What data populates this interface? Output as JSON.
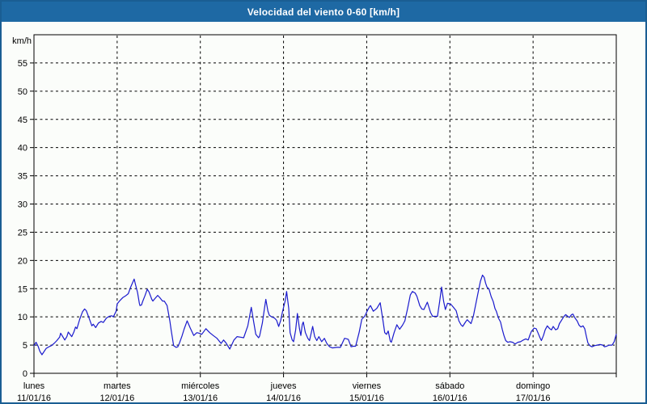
{
  "window": {
    "title": "Velocidad del viento 0-60 [km/h]"
  },
  "colors": {
    "frame_border": "#1A5E93",
    "titlebar_bg": "#1E69A4",
    "title_text": "#FFFFFF",
    "background": "#FBFDFA",
    "plot_border": "#000000",
    "grid": "#000000",
    "tick_text": "#000000",
    "line": "#1A1ACD"
  },
  "chart_data": {
    "type": "line",
    "title": "Velocidad del viento 0-60 [km/h]",
    "ylabel": "km/h",
    "xlabel": "",
    "ylim": [
      0,
      60
    ],
    "yticks": [
      0,
      5,
      10,
      15,
      20,
      25,
      30,
      35,
      40,
      45,
      50,
      55
    ],
    "y_unit_label": "km/h",
    "xlim_hours": [
      0,
      168
    ],
    "grid": true,
    "legend_position": "none",
    "x_categories": [
      {
        "day": "lunes",
        "date": "11/01/16"
      },
      {
        "day": "martes",
        "date": "12/01/16"
      },
      {
        "day": "miércoles",
        "date": "13/01/16"
      },
      {
        "day": "jueves",
        "date": "14/01/16"
      },
      {
        "day": "viernes",
        "date": "15/01/16"
      },
      {
        "day": "sábado",
        "date": "16/01/16"
      },
      {
        "day": "domingo",
        "date": "17/01/16"
      }
    ],
    "series": [
      {
        "name": "Velocidad del viento",
        "color": "#1A1ACD",
        "points": [
          [
            0,
            4.9
          ],
          [
            0.6,
            5.5
          ],
          [
            1.2,
            4.8
          ],
          [
            1.7,
            3.9
          ],
          [
            2.3,
            3.3
          ],
          [
            3.5,
            4.4
          ],
          [
            4.3,
            4.7
          ],
          [
            5,
            4.9
          ],
          [
            5.8,
            5.3
          ],
          [
            6.6,
            5.8
          ],
          [
            7.4,
            6.4
          ],
          [
            7.7,
            7.1
          ],
          [
            8.1,
            6.7
          ],
          [
            8.9,
            5.9
          ],
          [
            9.5,
            6.5
          ],
          [
            9.9,
            7.3
          ],
          [
            10.9,
            6.5
          ],
          [
            11.5,
            7.3
          ],
          [
            12,
            8.2
          ],
          [
            12.4,
            7.9
          ],
          [
            13.2,
            9.6
          ],
          [
            14,
            10.9
          ],
          [
            14.6,
            11.4
          ],
          [
            15.1,
            11.1
          ],
          [
            15.9,
            9.8
          ],
          [
            16.7,
            8.4
          ],
          [
            17.1,
            8.7
          ],
          [
            17.8,
            8.1
          ],
          [
            18.6,
            8.9
          ],
          [
            19.4,
            9.2
          ],
          [
            20,
            9
          ],
          [
            20.9,
            9.8
          ],
          [
            21.7,
            10.1
          ],
          [
            22.5,
            10.2
          ],
          [
            22.9,
            10
          ],
          [
            23.7,
            11
          ],
          [
            24,
            12.3
          ],
          [
            24.8,
            12.9
          ],
          [
            25.6,
            13.4
          ],
          [
            26.4,
            13.7
          ],
          [
            27.2,
            14.1
          ],
          [
            27.9,
            15.3
          ],
          [
            28.9,
            16.7
          ],
          [
            29.3,
            15.7
          ],
          [
            29.9,
            14.3
          ],
          [
            30.4,
            12.4
          ],
          [
            30.6,
            12
          ],
          [
            31,
            12.1
          ],
          [
            31.4,
            12.8
          ],
          [
            32,
            13.7
          ],
          [
            32.7,
            14.9
          ],
          [
            33.2,
            14.4
          ],
          [
            34,
            13.1
          ],
          [
            34.3,
            12.8
          ],
          [
            34.7,
            13.1
          ],
          [
            35.7,
            13.8
          ],
          [
            36.3,
            13.4
          ],
          [
            37.1,
            12.8
          ],
          [
            37.6,
            12.8
          ],
          [
            38.4,
            12
          ],
          [
            39.2,
            9.3
          ],
          [
            39.6,
            7.6
          ],
          [
            40.3,
            4.9
          ],
          [
            41,
            4.6
          ],
          [
            41.5,
            4.7
          ],
          [
            42,
            5.4
          ],
          [
            42.7,
            6.6
          ],
          [
            43.3,
            7.8
          ],
          [
            44.2,
            9.3
          ],
          [
            45.1,
            8
          ],
          [
            46.1,
            6.7
          ],
          [
            47,
            7.2
          ],
          [
            47.7,
            7.1
          ],
          [
            48.4,
            6.9
          ],
          [
            49.6,
            7.9
          ],
          [
            50.7,
            7.2
          ],
          [
            51.7,
            6.7
          ],
          [
            52.8,
            6.2
          ],
          [
            54,
            5.3
          ],
          [
            54.7,
            5.9
          ],
          [
            55.4,
            5.4
          ],
          [
            56.5,
            4.3
          ],
          [
            57.7,
            5.9
          ],
          [
            58.6,
            6.5
          ],
          [
            59.6,
            6.4
          ],
          [
            60.5,
            6.3
          ],
          [
            61.7,
            8.4
          ],
          [
            62.7,
            11.7
          ],
          [
            63.4,
            9.1
          ],
          [
            64,
            6.9
          ],
          [
            64.8,
            6.3
          ],
          [
            65.1,
            6.6
          ],
          [
            65.9,
            8.9
          ],
          [
            66.5,
            11.5
          ],
          [
            66.9,
            13.1
          ],
          [
            67.5,
            11
          ],
          [
            67.9,
            10.3
          ],
          [
            68.6,
            10
          ],
          [
            69.4,
            9.8
          ],
          [
            70,
            9.4
          ],
          [
            70.6,
            8.3
          ],
          [
            71.2,
            9.4
          ],
          [
            71.7,
            10.9
          ],
          [
            72.5,
            12.9
          ],
          [
            72.9,
            14.5
          ],
          [
            73.5,
            11.5
          ],
          [
            73.9,
            7.2
          ],
          [
            74.5,
            5.9
          ],
          [
            74.9,
            5.6
          ],
          [
            75.5,
            7.7
          ],
          [
            76,
            10.6
          ],
          [
            76.6,
            7.9
          ],
          [
            77,
            6.7
          ],
          [
            77.4,
            8.6
          ],
          [
            77.7,
            9.1
          ],
          [
            78.3,
            7.2
          ],
          [
            79,
            6.2
          ],
          [
            79.5,
            5.8
          ],
          [
            80,
            7.2
          ],
          [
            80.4,
            8.3
          ],
          [
            81,
            6.5
          ],
          [
            81.6,
            5.8
          ],
          [
            82.2,
            6.5
          ],
          [
            83,
            5.6
          ],
          [
            83.8,
            6.2
          ],
          [
            84.5,
            5.3
          ],
          [
            85.3,
            4.7
          ],
          [
            86.1,
            4.5
          ],
          [
            87.3,
            4.6
          ],
          [
            88.4,
            4.6
          ],
          [
            89.6,
            6.2
          ],
          [
            90.3,
            6.1
          ],
          [
            90.7,
            6
          ],
          [
            91.5,
            4.7
          ],
          [
            92.1,
            4.8
          ],
          [
            92.8,
            4.8
          ],
          [
            93.8,
            7.2
          ],
          [
            94.6,
            9.6
          ],
          [
            95.4,
            10.1
          ],
          [
            96.1,
            11
          ],
          [
            96.8,
            11.8
          ],
          [
            97.1,
            12
          ],
          [
            97.9,
            11
          ],
          [
            98.9,
            11.5
          ],
          [
            99.9,
            12.5
          ],
          [
            100.7,
            9.3
          ],
          [
            101.2,
            7.2
          ],
          [
            101.7,
            6.9
          ],
          [
            102.2,
            7.5
          ],
          [
            102.8,
            5.7
          ],
          [
            103.1,
            5.5
          ],
          [
            103.9,
            7.2
          ],
          [
            104.7,
            8.6
          ],
          [
            105.5,
            7.8
          ],
          [
            106.3,
            8.5
          ],
          [
            107,
            9.3
          ],
          [
            107.8,
            11.5
          ],
          [
            108.6,
            13.9
          ],
          [
            109.2,
            14.5
          ],
          [
            110,
            14.2
          ],
          [
            110.5,
            13.6
          ],
          [
            111.3,
            12
          ],
          [
            111.9,
            11.4
          ],
          [
            112.5,
            11.3
          ],
          [
            113.5,
            12.6
          ],
          [
            114.4,
            10.8
          ],
          [
            115,
            10.1
          ],
          [
            115.7,
            10.1
          ],
          [
            116.4,
            10.1
          ],
          [
            117,
            12.5
          ],
          [
            117.6,
            15.3
          ],
          [
            118.2,
            12.7
          ],
          [
            118.7,
            11.3
          ],
          [
            119.3,
            12.4
          ],
          [
            120.2,
            12.3
          ],
          [
            121,
            11.7
          ],
          [
            121.8,
            11.1
          ],
          [
            122.6,
            9.3
          ],
          [
            123.2,
            8.6
          ],
          [
            123.7,
            8.3
          ],
          [
            124.5,
            9.1
          ],
          [
            125,
            9.5
          ],
          [
            126.1,
            8.8
          ],
          [
            126.8,
            10.2
          ],
          [
            128,
            13.9
          ],
          [
            128.8,
            16.3
          ],
          [
            129.4,
            17.4
          ],
          [
            129.9,
            17
          ],
          [
            130.3,
            16
          ],
          [
            130.7,
            15.3
          ],
          [
            131.3,
            14.9
          ],
          [
            131.9,
            13.6
          ],
          [
            132.5,
            12.7
          ],
          [
            133,
            11.5
          ],
          [
            133.4,
            11
          ],
          [
            134,
            9.8
          ],
          [
            134.6,
            9.1
          ],
          [
            135.1,
            7.8
          ],
          [
            135.6,
            6.7
          ],
          [
            136.1,
            5.8
          ],
          [
            136.7,
            5.5
          ],
          [
            137.3,
            5.6
          ],
          [
            138.1,
            5.5
          ],
          [
            138.8,
            5.2
          ],
          [
            139.6,
            5.5
          ],
          [
            140.4,
            5.6
          ],
          [
            141.2,
            5.9
          ],
          [
            141.9,
            6.1
          ],
          [
            142.6,
            5.9
          ],
          [
            143.1,
            6.8
          ],
          [
            143.5,
            7.4
          ],
          [
            144.3,
            8
          ],
          [
            144.9,
            7.9
          ],
          [
            145.4,
            7.2
          ],
          [
            146,
            6.3
          ],
          [
            146.4,
            5.8
          ],
          [
            147,
            6.7
          ],
          [
            147.5,
            7.7
          ],
          [
            148.1,
            8.4
          ],
          [
            148.8,
            7.9
          ],
          [
            149.3,
            7.7
          ],
          [
            149.8,
            8.3
          ],
          [
            150.5,
            7.7
          ],
          [
            151.1,
            7.9
          ],
          [
            151.6,
            8.8
          ],
          [
            152.2,
            9.4
          ],
          [
            152.8,
            10
          ],
          [
            153.4,
            10.4
          ],
          [
            154,
            10.1
          ],
          [
            154.5,
            9.9
          ],
          [
            155.1,
            10.4
          ],
          [
            155.5,
            10.5
          ],
          [
            156.1,
            9.8
          ],
          [
            156.7,
            9.3
          ],
          [
            157.3,
            8.5
          ],
          [
            157.8,
            8.2
          ],
          [
            158.4,
            8.4
          ],
          [
            158.9,
            7.9
          ],
          [
            159.4,
            6.5
          ],
          [
            159.8,
            5.4
          ],
          [
            160.4,
            4.9
          ],
          [
            161,
            4.7
          ],
          [
            161.7,
            4.9
          ],
          [
            162.5,
            5
          ],
          [
            163.3,
            5.1
          ],
          [
            164.1,
            5
          ],
          [
            164.6,
            4.7
          ],
          [
            165.2,
            4.8
          ],
          [
            166,
            5
          ],
          [
            166.8,
            5
          ],
          [
            167.4,
            5.6
          ],
          [
            168,
            6.9
          ]
        ]
      }
    ]
  }
}
